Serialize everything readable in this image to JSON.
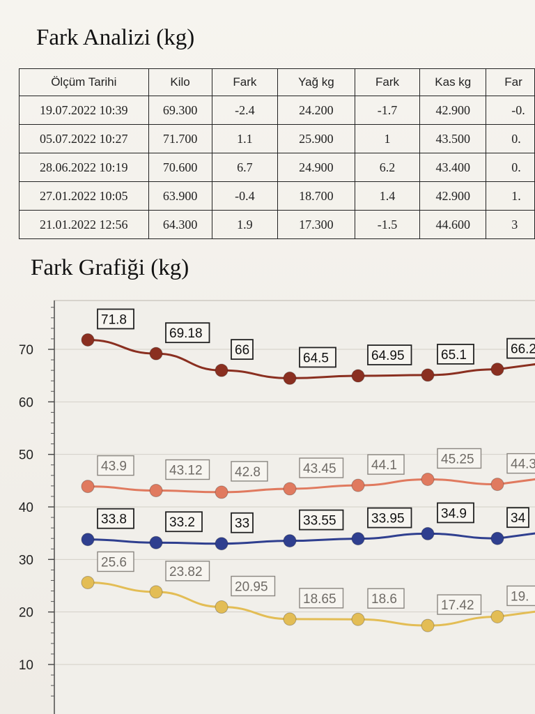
{
  "titles": {
    "analysis": "Fark Analizi (kg)",
    "graph": "Fark Grafiği (kg)"
  },
  "table": {
    "headers": [
      "Ölçüm Tarihi",
      "Kilo",
      "Fark",
      "Yağ kg",
      "Fark",
      "Kas kg",
      "Far"
    ],
    "rows": [
      [
        "19.07.2022  10:39",
        "69.300",
        "-2.4",
        "24.200",
        "-1.7",
        "42.900",
        "-0."
      ],
      [
        "05.07.2022  10:27",
        "71.700",
        "1.1",
        "25.900",
        "1",
        "43.500",
        "0."
      ],
      [
        "28.06.2022  10:19",
        "70.600",
        "6.7",
        "24.900",
        "6.2",
        "43.400",
        "0."
      ],
      [
        "27.01.2022  10:05",
        "63.900",
        "-0.4",
        "18.700",
        "1.4",
        "42.900",
        "1."
      ],
      [
        "21.01.2022  12:56",
        "64.300",
        "1.9",
        "17.300",
        "-1.5",
        "44.600",
        "3"
      ]
    ]
  },
  "chart_data": {
    "type": "line",
    "y_ticks": [
      10,
      20,
      30,
      40,
      50,
      60,
      70
    ],
    "grid": true,
    "series": [
      {
        "color": "#8a2f20",
        "label_style": "dark",
        "values": [
          71.8,
          69.18,
          66,
          64.5,
          64.95,
          65.1,
          66.2
        ],
        "labels": [
          "71.8",
          "69.18",
          "66",
          "64.5",
          "64.95",
          "65.1",
          "66.2"
        ]
      },
      {
        "color": "#e07a5f",
        "label_style": "light",
        "values": [
          43.9,
          43.12,
          42.8,
          43.45,
          44.1,
          45.25,
          44.3
        ],
        "labels": [
          "43.9",
          "43.12",
          "42.8",
          "43.45",
          "44.1",
          "45.25",
          "44.3"
        ]
      },
      {
        "color": "#2f3f8f",
        "label_style": "dark",
        "values": [
          33.8,
          33.2,
          33,
          33.55,
          33.95,
          34.9,
          34
        ],
        "labels": [
          "33.8",
          "33.2",
          "33",
          "33.55",
          "33.95",
          "34.9",
          "34"
        ]
      },
      {
        "color": "#e3bd55",
        "label_style": "light",
        "values": [
          25.6,
          23.82,
          20.95,
          18.65,
          18.6,
          17.42,
          19.1
        ],
        "labels": [
          "25.6",
          "23.82",
          "20.95",
          "18.65",
          "18.6",
          "17.42",
          "19."
        ]
      }
    ]
  }
}
